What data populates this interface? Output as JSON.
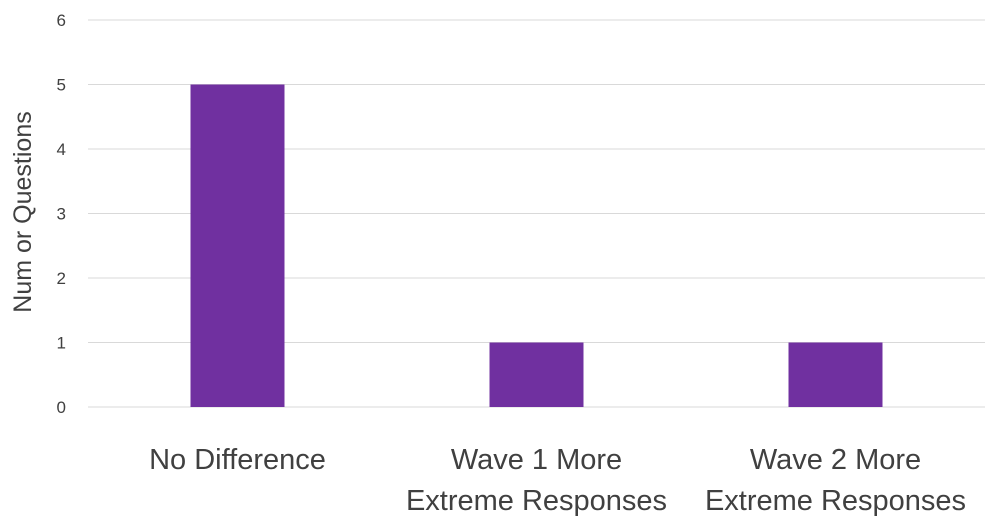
{
  "chart_data": {
    "type": "bar",
    "title": "",
    "xlabel": "",
    "ylabel": "Num or Questions",
    "categories": [
      [
        "No Difference"
      ],
      [
        "Wave 1 More",
        "Extreme Responses"
      ],
      [
        "Wave 2 More",
        "Extreme Responses"
      ]
    ],
    "values": [
      5,
      1,
      1
    ],
    "ylim": [
      0,
      6
    ],
    "yticks": [
      0,
      1,
      2,
      3,
      4,
      5,
      6
    ],
    "grid": true,
    "legend": "none",
    "bar_color": "#7030a0"
  }
}
